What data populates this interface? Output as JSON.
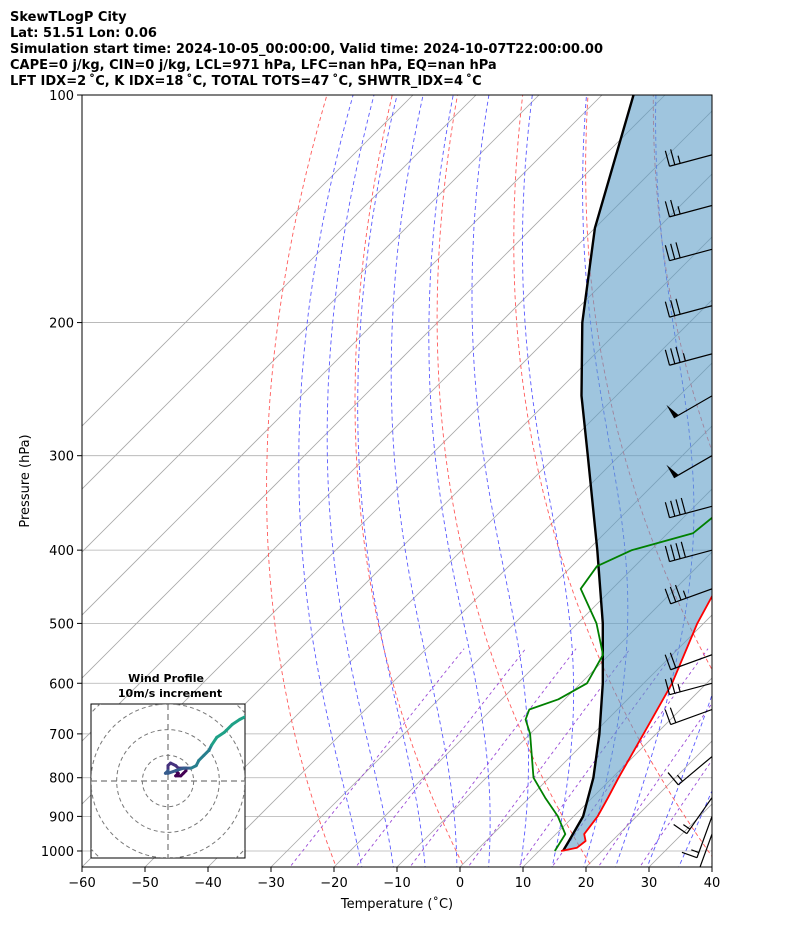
{
  "header": {
    "line1": "SkewTLogP City",
    "line2": "Lat: 51.51   Lon: 0.06",
    "line3": "Simulation start time: 2024-10-05_00:00:00, Valid time: 2024-10-07T22:00:00.00",
    "line4": "CAPE=0 j/kg, CIN=0 j/kg, LCL=971 hPa, LFC=nan hPa, EQ=nan hPa",
    "line5": "LFT IDX=2 ˚C, K IDX=18 ˚C, TOTAL TOTS=47 ˚C, SHWTR_IDX=4 ˚C"
  },
  "chart_data": {
    "type": "skewt",
    "xlabel": "Temperature (˚C)",
    "ylabel": "Pressure (hPa)",
    "xlim": [
      -60,
      40
    ],
    "plim": [
      1050,
      100
    ],
    "x_ticks": [
      -60,
      -50,
      -40,
      -30,
      -20,
      -10,
      0,
      10,
      20,
      30,
      40
    ],
    "x_tick_labels": [
      "−60",
      "−50",
      "−40",
      "−30",
      "−20",
      "−10",
      "0",
      "10",
      "20",
      "30",
      "40"
    ],
    "p_ticks": [
      1000,
      900,
      800,
      700,
      600,
      500,
      400,
      300,
      200,
      100
    ],
    "temperature": {
      "color": "#ff0000",
      "points": [
        [
          1000,
          13.5
        ],
        [
          990,
          15.5
        ],
        [
          970,
          15.8
        ],
        [
          950,
          14.5
        ],
        [
          900,
          13.8
        ],
        [
          850,
          12.5
        ],
        [
          800,
          11.0
        ],
        [
          700,
          8.0
        ],
        [
          600,
          4.5
        ],
        [
          500,
          -1.0
        ],
        [
          450,
          -3.5
        ],
        [
          400,
          -6.0
        ],
        [
          350,
          -8.5
        ],
        [
          320,
          -8.5
        ],
        [
          300,
          -10.0
        ],
        [
          270,
          -13.0
        ],
        [
          250,
          -16.0
        ],
        [
          233,
          -19.0
        ],
        [
          220,
          -16.0
        ],
        [
          200,
          -9.0
        ],
        [
          180,
          -9.5
        ],
        [
          160,
          -10.0
        ],
        [
          150,
          -11.0
        ],
        [
          140,
          -13.0
        ],
        [
          130,
          -15.5
        ],
        [
          125,
          -17.0
        ],
        [
          115,
          -19.0
        ],
        [
          108,
          -22.0
        ],
        [
          100,
          -24.0
        ]
      ]
    },
    "dewpoint": {
      "color": "#008000",
      "points": [
        [
          1000,
          12.5
        ],
        [
          950,
          11.5
        ],
        [
          900,
          7.5
        ],
        [
          850,
          2.5
        ],
        [
          800,
          -2.5
        ],
        [
          700,
          -10.0
        ],
        [
          670,
          -13.0
        ],
        [
          650,
          -14.0
        ],
        [
          630,
          -11.0
        ],
        [
          600,
          -9.0
        ],
        [
          550,
          -11.0
        ],
        [
          500,
          -17.0
        ],
        [
          450,
          -25.0
        ],
        [
          420,
          -26.0
        ],
        [
          400,
          -23.0
        ],
        [
          380,
          -16.0
        ],
        [
          350,
          -15.0
        ],
        [
          320,
          -15.0
        ],
        [
          300,
          -17.0
        ],
        [
          280,
          -19.0
        ],
        [
          255,
          -25.0
        ],
        [
          235,
          -30.0
        ],
        [
          220,
          -29.0
        ],
        [
          205,
          -32.0
        ],
        [
          185,
          -38.0
        ],
        [
          160,
          -40.0
        ],
        [
          150,
          -40.0
        ],
        [
          130,
          -40.0
        ],
        [
          115,
          -36.0
        ],
        [
          100,
          -31.0
        ]
      ]
    },
    "parcel": {
      "color": "#000000",
      "points": [
        [
          1000,
          13.8
        ],
        [
          971,
          13.2
        ],
        [
          900,
          11.5
        ],
        [
          800,
          7.0
        ],
        [
          700,
          1.0
        ],
        [
          600,
          -6.5
        ],
        [
          500,
          -16.0
        ],
        [
          400,
          -28.5
        ],
        [
          300,
          -45.0
        ],
        [
          250,
          -55.5
        ],
        [
          200,
          -67.0
        ],
        [
          150,
          -80.0
        ],
        [
          100,
          -95.0
        ]
      ]
    },
    "shading": {
      "color": "#5f9ec8",
      "label": "negative area between parcel and environment"
    },
    "dry_adiabats_theta_K": [
      250,
      270,
      290,
      310,
      330,
      350,
      370,
      390,
      410,
      430,
      450,
      470,
      490
    ],
    "moist_adiabats_start_C": [
      -15,
      -10,
      -5,
      0,
      5,
      10,
      15,
      20,
      25,
      30,
      35
    ],
    "isotherms_C": [
      -130,
      -120,
      -110,
      -100,
      -90,
      -80,
      -70,
      -60,
      -50,
      -40,
      -30,
      -20,
      -10,
      0,
      10,
      20,
      30,
      40
    ],
    "mixing_ratios_gkg": [
      0.4,
      1,
      2,
      4,
      7,
      10,
      16,
      24
    ],
    "wind_barbs": [
      {
        "p": 1040,
        "speed_kt": 5,
        "dir": 10
      },
      {
        "p": 1000,
        "speed_kt": 5,
        "dir": 10
      },
      {
        "p": 950,
        "speed_kt": 15,
        "dir": 200
      },
      {
        "p": 900,
        "speed_kt": 15,
        "dir": 200
      },
      {
        "p": 850,
        "speed_kt": 15,
        "dir": 215
      },
      {
        "p": 750,
        "speed_kt": 15,
        "dir": 230
      },
      {
        "p": 650,
        "speed_kt": 20,
        "dir": 250
      },
      {
        "p": 600,
        "speed_kt": 25,
        "dir": 255
      },
      {
        "p": 550,
        "speed_kt": 20,
        "dir": 250
      },
      {
        "p": 450,
        "speed_kt": 35,
        "dir": 250
      },
      {
        "p": 400,
        "speed_kt": 40,
        "dir": 255
      },
      {
        "p": 350,
        "speed_kt": 40,
        "dir": 255
      },
      {
        "p": 300,
        "speed_kt": 50,
        "dir": 240
      },
      {
        "p": 250,
        "speed_kt": 50,
        "dir": 240
      },
      {
        "p": 220,
        "speed_kt": 35,
        "dir": 255
      },
      {
        "p": 190,
        "speed_kt": 30,
        "dir": 255
      },
      {
        "p": 160,
        "speed_kt": 30,
        "dir": 255
      },
      {
        "p": 140,
        "speed_kt": 25,
        "dir": 255
      },
      {
        "p": 120,
        "speed_kt": 25,
        "dir": 255
      }
    ],
    "hodograph": {
      "title": "Wind Profile",
      "subtitle": "10m/s increment",
      "ring_spacing_ms": 10,
      "range_ms": 30,
      "points": [
        [
          3,
          4
        ],
        [
          4,
          3
        ],
        [
          3,
          2
        ],
        [
          5,
          2
        ],
        [
          6,
          3
        ],
        [
          7,
          4
        ],
        [
          7,
          5
        ],
        [
          4,
          5
        ],
        [
          3,
          6
        ],
        [
          1,
          7
        ],
        [
          0,
          6
        ],
        [
          0,
          4
        ],
        [
          -1,
          3
        ],
        [
          0,
          3
        ],
        [
          3,
          4
        ],
        [
          6,
          5
        ],
        [
          9,
          5
        ],
        [
          11,
          6
        ],
        [
          12,
          8
        ],
        [
          14,
          10
        ],
        [
          16,
          12
        ],
        [
          17,
          14
        ],
        [
          19,
          17
        ],
        [
          22,
          19
        ],
        [
          25,
          22
        ],
        [
          28,
          24
        ],
        [
          30,
          25
        ],
        [
          31,
          26
        ],
        [
          32,
          26
        ],
        [
          33,
          25
        ],
        [
          34,
          25
        ],
        [
          35,
          25
        ],
        [
          36,
          26
        ],
        [
          37,
          26
        ],
        [
          38,
          26
        ],
        [
          40,
          26
        ],
        [
          42,
          26
        ],
        [
          45,
          27
        ],
        [
          48,
          28
        ],
        [
          52,
          30
        ],
        [
          56,
          32
        ],
        [
          60,
          34
        ],
        [
          65,
          37
        ]
      ]
    }
  }
}
